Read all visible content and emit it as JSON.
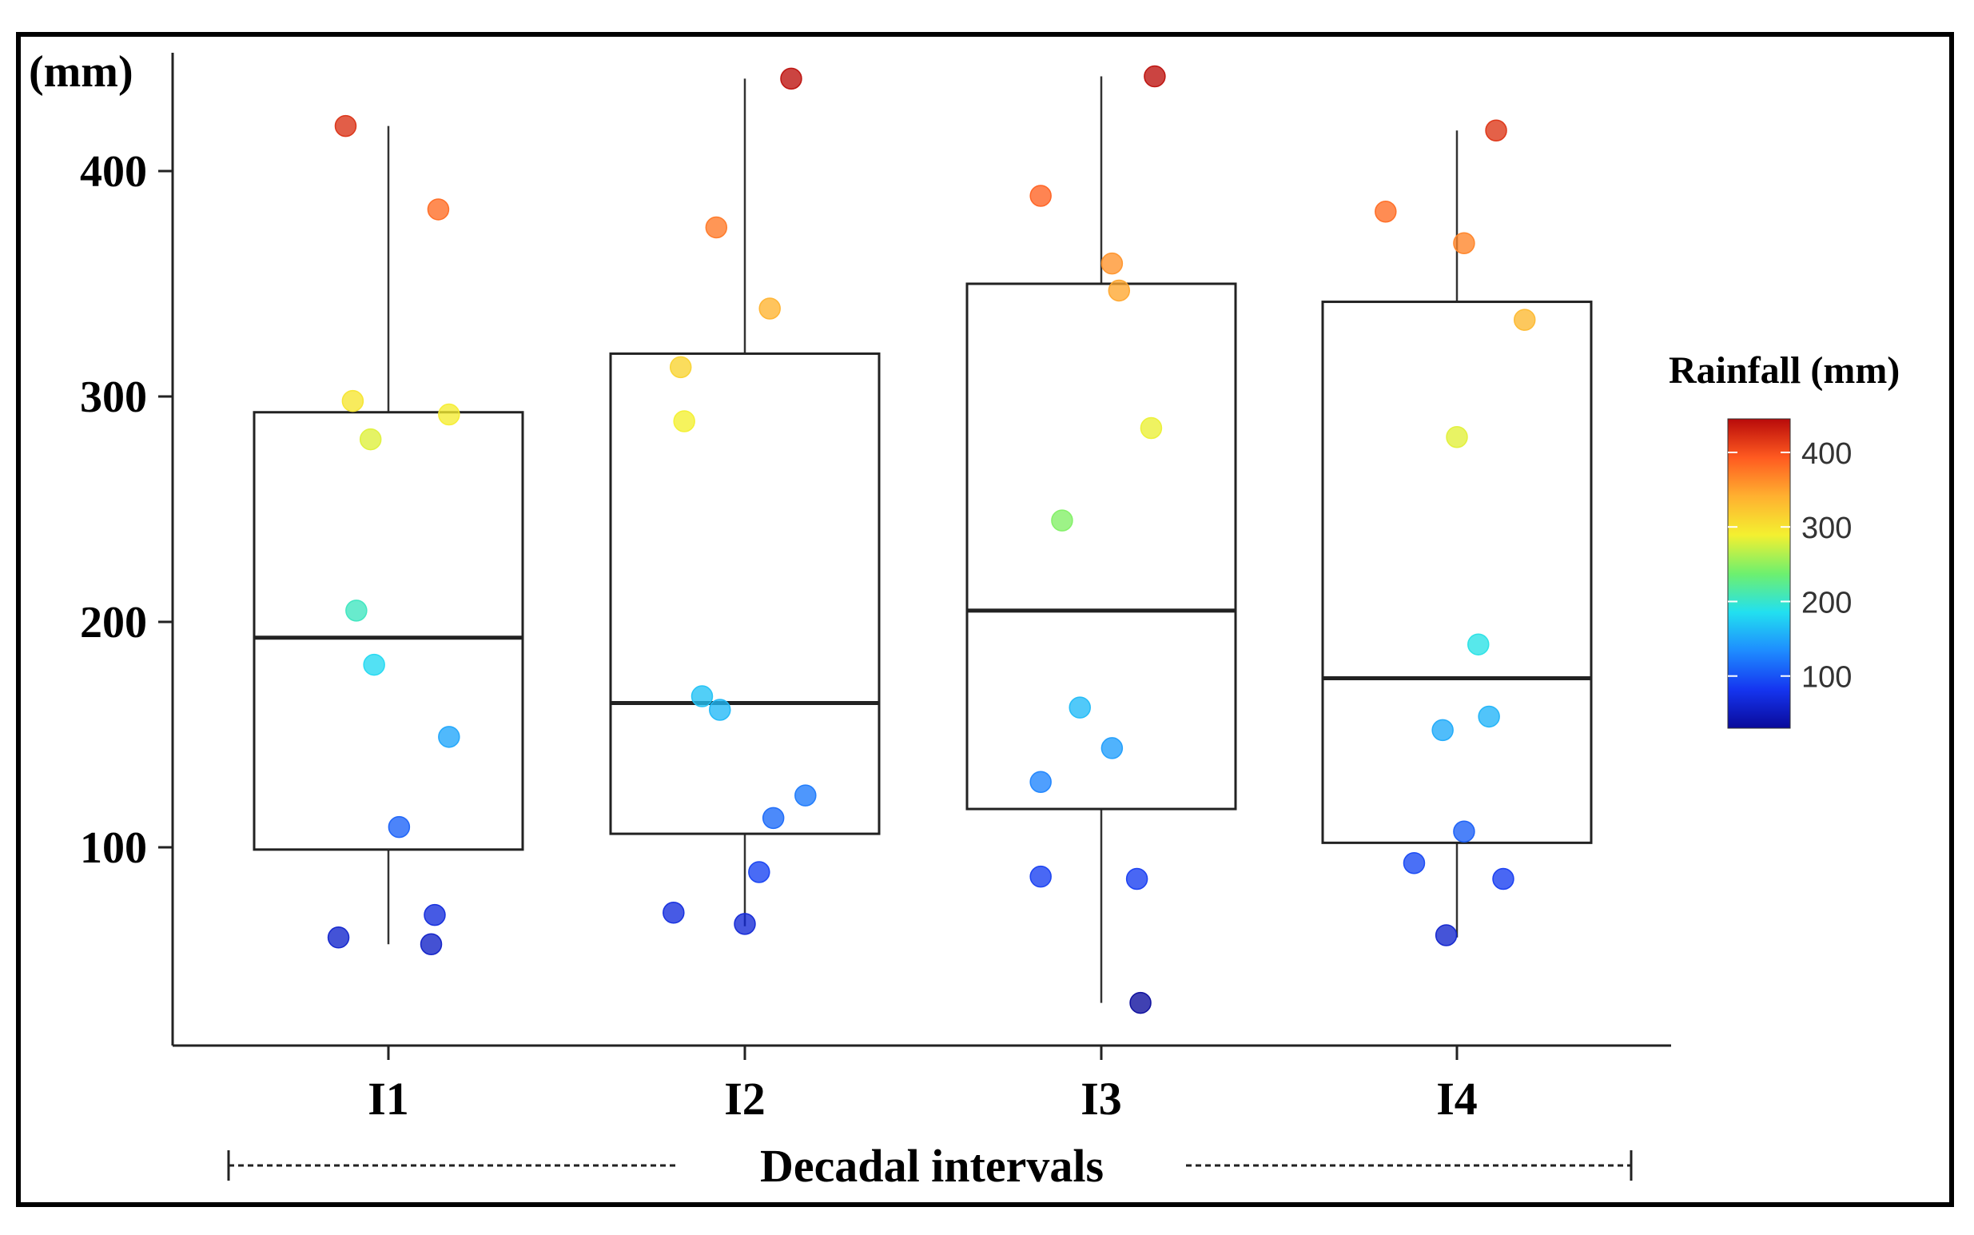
{
  "chart_data": {
    "type": "box",
    "y_unit_label": "(mm)",
    "xlabel": "Decadal intervals",
    "ylim": [
      10,
      460
    ],
    "yticks": [
      100,
      200,
      300,
      400
    ],
    "categories": [
      "I1",
      "I2",
      "I3",
      "I4"
    ],
    "boxes": [
      {
        "name": "I1",
        "whisker_low": 57,
        "q1": 99,
        "median": 193,
        "q3": 293,
        "whisker_high": 420
      },
      {
        "name": "I2",
        "whisker_low": 65,
        "q1": 106,
        "median": 164,
        "q3": 319,
        "whisker_high": 441
      },
      {
        "name": "I3",
        "whisker_low": 31,
        "q1": 117,
        "median": 205,
        "q3": 350,
        "whisker_high": 442
      },
      {
        "name": "I4",
        "whisker_low": 60,
        "q1": 102,
        "median": 175,
        "q3": 342,
        "whisker_high": 418
      }
    ],
    "points": [
      {
        "group": "I1",
        "offset": -0.12,
        "value": 420
      },
      {
        "group": "I1",
        "offset": 0.14,
        "value": 383
      },
      {
        "group": "I1",
        "offset": -0.1,
        "value": 298
      },
      {
        "group": "I1",
        "offset": -0.05,
        "value": 281
      },
      {
        "group": "I1",
        "offset": 0.17,
        "value": 292
      },
      {
        "group": "I1",
        "offset": -0.09,
        "value": 205
      },
      {
        "group": "I1",
        "offset": -0.04,
        "value": 181
      },
      {
        "group": "I1",
        "offset": 0.17,
        "value": 149
      },
      {
        "group": "I1",
        "offset": 0.03,
        "value": 109
      },
      {
        "group": "I1",
        "offset": 0.13,
        "value": 70
      },
      {
        "group": "I1",
        "offset": -0.14,
        "value": 60
      },
      {
        "group": "I1",
        "offset": 0.12,
        "value": 57
      },
      {
        "group": "I2",
        "offset": 0.13,
        "value": 441
      },
      {
        "group": "I2",
        "offset": -0.08,
        "value": 375
      },
      {
        "group": "I2",
        "offset": 0.07,
        "value": 339
      },
      {
        "group": "I2",
        "offset": -0.18,
        "value": 313
      },
      {
        "group": "I2",
        "offset": -0.17,
        "value": 289
      },
      {
        "group": "I2",
        "offset": -0.12,
        "value": 167
      },
      {
        "group": "I2",
        "offset": -0.07,
        "value": 161
      },
      {
        "group": "I2",
        "offset": 0.17,
        "value": 123
      },
      {
        "group": "I2",
        "offset": 0.08,
        "value": 113
      },
      {
        "group": "I2",
        "offset": 0.04,
        "value": 89
      },
      {
        "group": "I2",
        "offset": -0.2,
        "value": 71
      },
      {
        "group": "I2",
        "offset": 0.0,
        "value": 66
      },
      {
        "group": "I3",
        "offset": 0.15,
        "value": 442
      },
      {
        "group": "I3",
        "offset": -0.17,
        "value": 389
      },
      {
        "group": "I3",
        "offset": 0.03,
        "value": 359
      },
      {
        "group": "I3",
        "offset": 0.05,
        "value": 347
      },
      {
        "group": "I3",
        "offset": 0.14,
        "value": 286
      },
      {
        "group": "I3",
        "offset": -0.11,
        "value": 245
      },
      {
        "group": "I3",
        "offset": -0.06,
        "value": 162
      },
      {
        "group": "I3",
        "offset": 0.03,
        "value": 144
      },
      {
        "group": "I3",
        "offset": -0.17,
        "value": 129
      },
      {
        "group": "I3",
        "offset": -0.17,
        "value": 87
      },
      {
        "group": "I3",
        "offset": 0.1,
        "value": 86
      },
      {
        "group": "I3",
        "offset": 0.11,
        "value": 31
      },
      {
        "group": "I4",
        "offset": 0.11,
        "value": 418
      },
      {
        "group": "I4",
        "offset": -0.2,
        "value": 382
      },
      {
        "group": "I4",
        "offset": 0.02,
        "value": 368
      },
      {
        "group": "I4",
        "offset": 0.19,
        "value": 334
      },
      {
        "group": "I4",
        "offset": 0.0,
        "value": 282
      },
      {
        "group": "I4",
        "offset": 0.06,
        "value": 190
      },
      {
        "group": "I4",
        "offset": 0.09,
        "value": 158
      },
      {
        "group": "I4",
        "offset": -0.04,
        "value": 152
      },
      {
        "group": "I4",
        "offset": 0.02,
        "value": 107
      },
      {
        "group": "I4",
        "offset": -0.12,
        "value": 93
      },
      {
        "group": "I4",
        "offset": 0.13,
        "value": 86
      },
      {
        "group": "I4",
        "offset": -0.03,
        "value": 61
      }
    ],
    "colorbar": {
      "title": "Rainfall (mm)",
      "range": [
        30,
        445
      ],
      "ticks": [
        100,
        200,
        300,
        400
      ],
      "colors": [
        "#0a0a9a",
        "#1535f0",
        "#1e8cff",
        "#22e0f0",
        "#6ef06e",
        "#f4f030",
        "#ffb030",
        "#ff5a20",
        "#b80a0a"
      ]
    }
  }
}
